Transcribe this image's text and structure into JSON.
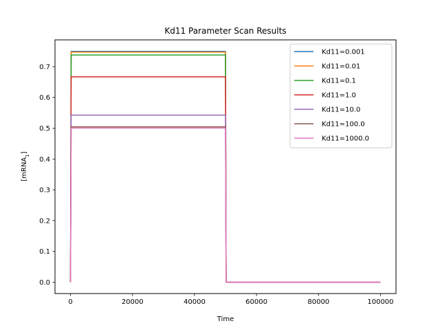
{
  "chart_data": {
    "type": "line",
    "title": "Kd11 Parameter Scan Results",
    "xlabel": "Time",
    "ylabel": "[mRNA",
    "ylabel_subscript": "1",
    "ylabel_suffix": "]",
    "xlim": [
      -5000,
      105000
    ],
    "ylim": [
      -0.037,
      0.787
    ],
    "xticks": [
      0,
      20000,
      40000,
      60000,
      80000,
      100000
    ],
    "yticks": [
      0.0,
      0.1,
      0.2,
      0.3,
      0.4,
      0.5,
      0.6,
      0.7
    ],
    "ytick_labels": [
      "0.0",
      "0.1",
      "0.2",
      "0.3",
      "0.4",
      "0.5",
      "0.6",
      "0.7"
    ],
    "grid": false,
    "legend_position": "top-right",
    "series": [
      {
        "name": "Kd11=0.001",
        "color": "#1f77b4",
        "x": [
          0,
          200,
          50000,
          50200,
          100000
        ],
        "y": [
          0,
          0.7495,
          0.7495,
          0,
          0
        ]
      },
      {
        "name": "Kd11=0.01",
        "color": "#ff7f0e",
        "x": [
          0,
          200,
          50000,
          50200,
          100000
        ],
        "y": [
          0,
          0.7475,
          0.7475,
          0,
          0
        ]
      },
      {
        "name": "Kd11=0.1",
        "color": "#2ca02c",
        "x": [
          0,
          200,
          50000,
          50200,
          100000
        ],
        "y": [
          0,
          0.738,
          0.738,
          0,
          0
        ]
      },
      {
        "name": "Kd11=1.0",
        "color": "#d62728",
        "x": [
          0,
          200,
          50000,
          50200,
          100000
        ],
        "y": [
          0,
          0.667,
          0.667,
          0,
          0
        ]
      },
      {
        "name": "Kd11=10.0",
        "color": "#9467bd",
        "x": [
          0,
          200,
          50000,
          50200,
          100000
        ],
        "y": [
          0,
          0.5425,
          0.5425,
          0,
          0
        ]
      },
      {
        "name": "Kd11=100.0",
        "color": "#8c564b",
        "x": [
          0,
          200,
          50000,
          50200,
          100000
        ],
        "y": [
          0,
          0.5045,
          0.5045,
          0,
          0
        ]
      },
      {
        "name": "Kd11=1000.0",
        "color": "#e377c2",
        "x": [
          0,
          200,
          50000,
          50200,
          100000
        ],
        "y": [
          0,
          0.5005,
          0.5005,
          0,
          0
        ]
      }
    ]
  }
}
